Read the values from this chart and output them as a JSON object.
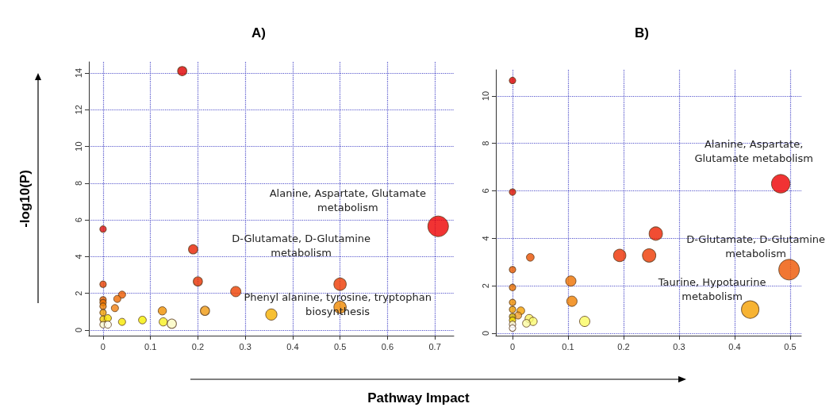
{
  "chart_data": [
    {
      "type": "bubble",
      "title": "A)",
      "ylabel": "-log10(P)",
      "xlabel": "Pathway Impact",
      "xlim": [
        -0.03,
        0.74
      ],
      "ylim": [
        -0.3,
        14.6
      ],
      "xticks": [
        0,
        0.1,
        0.2,
        0.3,
        0.4,
        0.5,
        0.6,
        0.7
      ],
      "yticks": [
        0,
        2,
        4,
        6,
        8,
        10,
        12,
        14
      ],
      "grid": true,
      "annotations": [
        {
          "text": "Alanine, Aspartate, Glutamate\nmetabolism",
          "x": 0.707,
          "y": 5.65
        },
        {
          "text": "D-Glutamate, D-Glutamine\nmetabolism",
          "x": 0.5,
          "y": 2.5
        },
        {
          "text": "Phenyl alanine, tyrosine, tryptophan\nbiosynthesis",
          "x": 0.5,
          "y": 1.25
        }
      ],
      "x": [
        0.167,
        0.707,
        0,
        0.19,
        0.2,
        0.28,
        0.5,
        0.5,
        0.355,
        0.215,
        0.125,
        0.04,
        0.03,
        0.025,
        0,
        0,
        0,
        0,
        0,
        0,
        0.01,
        0.04,
        0.083,
        0.127,
        0.145,
        0,
        0.01
      ],
      "values": [
        14.1,
        5.65,
        5.5,
        4.4,
        2.65,
        2.1,
        2.5,
        1.25,
        0.85,
        1.05,
        1.05,
        1.93,
        1.7,
        1.2,
        2.5,
        1.65,
        1.5,
        1.3,
        0.95,
        0.6,
        0.65,
        0.45,
        0.55,
        0.45,
        0.35,
        0.3,
        0.3
      ],
      "sizes": [
        0.2,
        1,
        0.1,
        0.2,
        0.2,
        0.25,
        0.36,
        0.36,
        0.3,
        0.2,
        0.16,
        0.12,
        0.12,
        0.12,
        0.1,
        0.1,
        0.1,
        0.1,
        0.1,
        0.1,
        0.12,
        0.12,
        0.14,
        0.16,
        0.2,
        0.1,
        0.12
      ],
      "colors": [
        "#e00000",
        "#ee0000",
        "#dd1010",
        "#e82000",
        "#e83000",
        "#ee4000",
        "#ee3800",
        "#f08a00",
        "#f5b000",
        "#f09a10",
        "#f09000",
        "#ee5a00",
        "#ee6a00",
        "#f08010",
        "#e84000",
        "#e86000",
        "#ea7000",
        "#f08000",
        "#f0a000",
        "#f5d000",
        "#f8e000",
        "#f8e800",
        "#f5f000",
        "#f8f020",
        "#fafac0",
        "#fbfbd0",
        "#ffffee"
      ]
    },
    {
      "type": "bubble",
      "title": "B)",
      "xlim": [
        -0.03,
        0.52
      ],
      "ylim": [
        -0.1,
        11.1
      ],
      "xticks": [
        0,
        0.1,
        0.2,
        0.3,
        0.4,
        0.5
      ],
      "yticks": [
        0,
        2,
        4,
        6,
        8,
        10
      ],
      "grid": true,
      "annotations": [
        {
          "text": "Alanine, Aspartate,\nGlutamate metabolism",
          "x": 0.483,
          "y": 6.3
        },
        {
          "text": "D-Glutamate, D-Glutamine\nmetabolism",
          "x": 0.498,
          "y": 2.68
        },
        {
          "text": "Taurine, Hypotaurine\nmetabolism",
          "x": 0.428,
          "y": 1.0
        }
      ],
      "x": [
        0,
        0,
        0.483,
        0.258,
        0.193,
        0.246,
        0.498,
        0.032,
        0,
        0,
        0.105,
        0.107,
        0.428,
        0.13,
        0,
        0,
        0.015,
        0.01,
        0,
        0,
        0.03,
        0.037,
        0.025,
        0,
        0
      ],
      "values": [
        10.65,
        5.95,
        6.3,
        4.2,
        3.28,
        3.28,
        2.68,
        3.2,
        2.68,
        1.93,
        2.2,
        1.35,
        1.0,
        0.5,
        1.3,
        1.0,
        0.95,
        0.75,
        0.7,
        0.55,
        0.62,
        0.5,
        0.42,
        0.38,
        0.22
      ],
      "sizes": [
        0.1,
        0.1,
        0.81,
        0.42,
        0.36,
        0.42,
        1,
        0.14,
        0.1,
        0.1,
        0.25,
        0.25,
        0.72,
        0.25,
        0.1,
        0.1,
        0.14,
        0.12,
        0.1,
        0.1,
        0.16,
        0.16,
        0.14,
        0.1,
        0.1
      ],
      "colors": [
        "#dd0000",
        "#dd1000",
        "#ee0000",
        "#ee2000",
        "#ee3000",
        "#ee3800",
        "#ee5500",
        "#e85000",
        "#e85a00",
        "#ee7000",
        "#ee7000",
        "#f08000",
        "#f5a000",
        "#fafa60",
        "#f09000",
        "#f0a000",
        "#f5a000",
        "#f0a030",
        "#d0b000",
        "#f5e000",
        "#f8f060",
        "#fafa70",
        "#fafaa0",
        "#fffbe0",
        "#ffffff"
      ]
    }
  ]
}
